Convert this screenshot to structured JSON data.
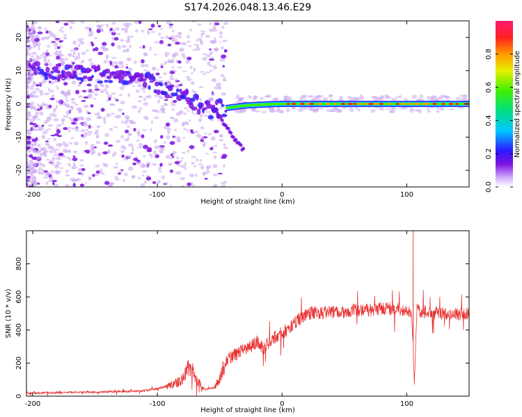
{
  "title": "S174.2026.048.13.46.E29",
  "colors": {
    "background": "#ffffff",
    "frame": "#000000",
    "snr_line": "#e83030",
    "spectrum_sparse": "#c9a6f0",
    "spectrum_dense": "#7a10e0"
  },
  "chart_data": [
    {
      "type": "heatmap",
      "name": "spectrogram",
      "title": "",
      "xlabel": "Height of straight line (km)",
      "ylabel": "Frequency (Hz)",
      "xlim": [
        -205,
        150
      ],
      "ylim": [
        -25,
        25
      ],
      "xticks": [
        -200,
        -100,
        0,
        100
      ],
      "yticks": [
        -20,
        -10,
        0,
        10,
        20
      ],
      "grid": false,
      "track": {
        "description_points_x": [
          -200,
          -150,
          -120,
          -100,
          -80,
          -60,
          -50,
          -40,
          -30,
          -20,
          -10,
          0,
          20,
          50,
          100,
          150
        ],
        "frequency_hz": [
          10,
          9,
          8,
          6,
          2,
          -2,
          -1.5,
          -1,
          -0.5,
          -0.3,
          -0.1,
          0,
          0,
          0,
          0,
          0
        ]
      },
      "colorbar": {
        "label": "Normalized spectral amplitude",
        "range": [
          0,
          1
        ],
        "ticks": [
          "0.0",
          "0.2",
          "0.4",
          "0.6",
          "0.8"
        ],
        "tick_values": [
          0,
          0.2,
          0.4,
          0.6,
          0.8
        ]
      }
    },
    {
      "type": "line",
      "name": "snr",
      "title": "",
      "xlabel": "Height of straight line (km)",
      "ylabel": "SNR (10 * v/v)",
      "xlim": [
        -205,
        150
      ],
      "ylim": [
        0,
        1000
      ],
      "xticks": [
        -200,
        -100,
        0,
        100
      ],
      "yticks": [
        0,
        200,
        400,
        600,
        800
      ],
      "grid": false,
      "series": [
        {
          "name": "SNR",
          "x": [
            -205,
            -190,
            -175,
            -160,
            -145,
            -130,
            -115,
            -100,
            -90,
            -85,
            -80,
            -75,
            -72,
            -68,
            -62,
            -55,
            -50,
            -45,
            -40,
            -35,
            -30,
            -25,
            -20,
            -15,
            -10,
            -5,
            0,
            5,
            10,
            15,
            20,
            25,
            30,
            40,
            50,
            60,
            70,
            80,
            90,
            100,
            104,
            106,
            108,
            112,
            120,
            130,
            140,
            150
          ],
          "values": [
            20,
            20,
            22,
            24,
            25,
            28,
            30,
            45,
            65,
            80,
            100,
            170,
            175,
            90,
            40,
            50,
            110,
            210,
            240,
            260,
            290,
            300,
            330,
            290,
            330,
            360,
            380,
            410,
            440,
            470,
            495,
            505,
            500,
            510,
            510,
            520,
            520,
            530,
            525,
            520,
            500,
            80,
            520,
            510,
            505,
            500,
            495,
            500
          ]
        }
      ],
      "spikes": [
        {
          "x": 105,
          "value": 1000
        },
        {
          "x": 106,
          "value": 70
        }
      ]
    }
  ]
}
